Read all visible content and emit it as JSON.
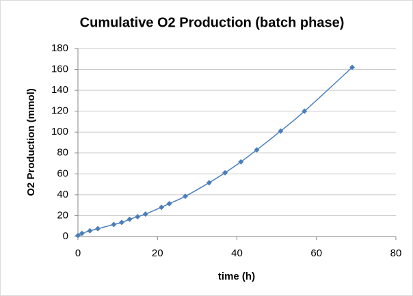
{
  "chart_data": {
    "type": "scatter",
    "title": "Cumulative O2 Production (batch phase)",
    "x_label": "time (h)",
    "y_label": "O2 Production (mmol)",
    "x": [
      0,
      1,
      3,
      5,
      9,
      11,
      13,
      15,
      17,
      21,
      23,
      27,
      33,
      37,
      41,
      45,
      51,
      57,
      69
    ],
    "values": [
      1,
      3,
      5.5,
      7.5,
      11.5,
      13.5,
      16.5,
      19,
      21.5,
      28,
      31.5,
      38.5,
      51.5,
      61,
      71.5,
      83,
      101,
      120,
      162
    ],
    "color": "#4a7ebb",
    "xlim": [
      0,
      80
    ],
    "xticks": [
      0,
      20,
      40,
      60,
      80
    ],
    "ylim": [
      0,
      180
    ],
    "yticks": [
      0,
      20,
      40,
      60,
      80,
      100,
      120,
      140,
      160,
      180
    ],
    "grid": true
  }
}
